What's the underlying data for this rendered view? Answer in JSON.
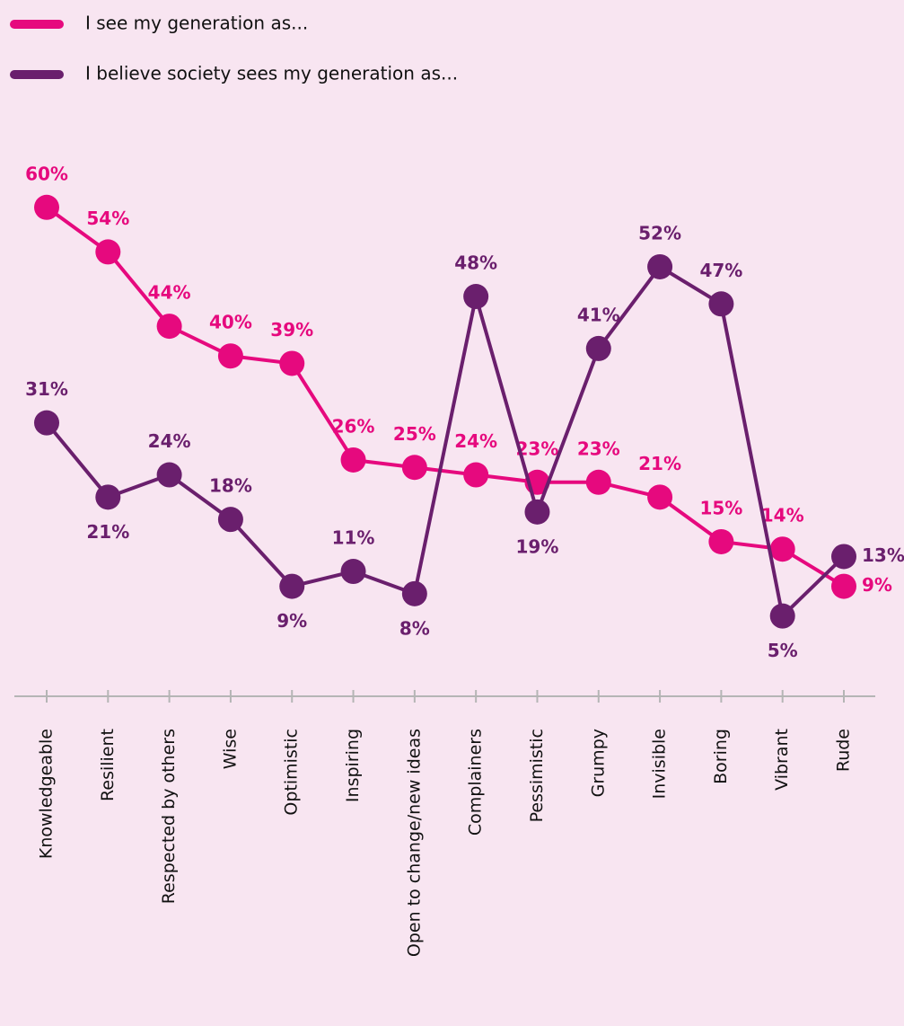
{
  "chart_data": {
    "type": "line",
    "categories": [
      "Knowledgeable",
      "Resilient",
      "Respected by others",
      "Wise",
      "Optimistic",
      "Inspiring",
      "Open to change/new ideas",
      "Complainers",
      "Pessimistic",
      "Grumpy",
      "Invisible",
      "Boring",
      "Vibrant",
      "Rude"
    ],
    "series": [
      {
        "name": "I see my generation as...",
        "color": "#e6097e",
        "values": [
          60,
          54,
          44,
          40,
          39,
          26,
          25,
          24,
          23,
          23,
          21,
          15,
          14,
          9
        ],
        "value_labels": [
          "60%",
          "54%",
          "44%",
          "40%",
          "39%",
          "26%",
          "25%",
          "24%",
          "23%",
          "23%",
          "21%",
          "15%",
          "14%",
          "9%"
        ]
      },
      {
        "name": "I believe society sees my generation as...",
        "color": "#6a1f6d",
        "values": [
          31,
          21,
          24,
          18,
          9,
          11,
          8,
          48,
          19,
          41,
          52,
          47,
          5,
          13
        ],
        "value_labels": [
          "31%",
          "21%",
          "24%",
          "18%",
          "9%",
          "11%",
          "8%",
          "48%",
          "19%",
          "41%",
          "52%",
          "47%",
          "5%",
          "13%"
        ]
      }
    ]
  }
}
